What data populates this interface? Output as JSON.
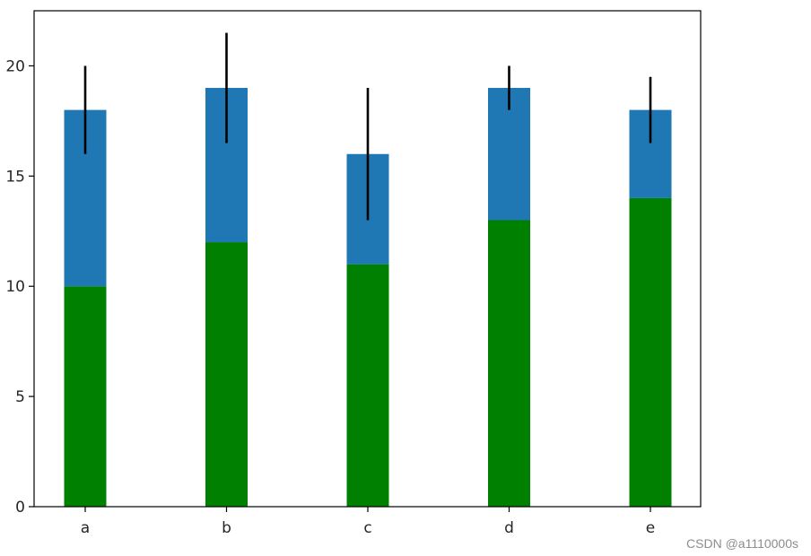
{
  "chart_data": {
    "type": "bar",
    "stacked": true,
    "categories": [
      "a",
      "b",
      "c",
      "d",
      "e"
    ],
    "series": [
      {
        "values": [
          10,
          12,
          11,
          13,
          14
        ],
        "color": "#008000"
      },
      {
        "values": [
          8,
          7,
          5,
          6,
          4
        ],
        "color": "#1f77b4",
        "error": [
          2,
          2.5,
          3,
          1,
          1.5
        ]
      }
    ],
    "ylim": [
      0,
      22.5
    ],
    "yticks": [
      0,
      5,
      10,
      15,
      20
    ],
    "xlabel": "",
    "ylabel": "",
    "grid": false,
    "errorbar_color": "#000000"
  },
  "watermark": "CSDN @a1110000s"
}
